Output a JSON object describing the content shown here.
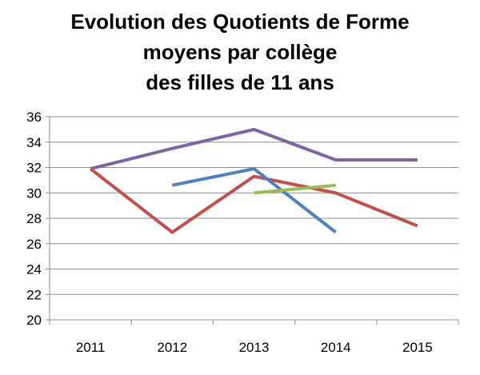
{
  "chart_data": {
    "type": "line",
    "title_lines": [
      "Evolution des Quotients de Forme",
      "moyens par collège",
      "des filles de 11 ans"
    ],
    "xlabel": "",
    "ylabel": "",
    "categories": [
      "2011",
      "2012",
      "2013",
      "2014",
      "2015"
    ],
    "y_ticks": [
      "20",
      "22",
      "24",
      "26",
      "28",
      "30",
      "32",
      "34",
      "36"
    ],
    "ylim": [
      20,
      36
    ],
    "grid": true,
    "legend": "none",
    "series": [
      {
        "color": "#8064A2",
        "values": [
          31.9,
          33.5,
          35.0,
          32.6,
          32.6
        ]
      },
      {
        "color": "#C0504D",
        "values": [
          31.9,
          26.9,
          31.3,
          30.0,
          27.4
        ]
      },
      {
        "color": "#4F81BD",
        "values": [
          null,
          30.6,
          31.9,
          26.9,
          null
        ]
      },
      {
        "color": "#9BBB59",
        "values": [
          null,
          null,
          30.0,
          30.6,
          null
        ]
      }
    ]
  }
}
